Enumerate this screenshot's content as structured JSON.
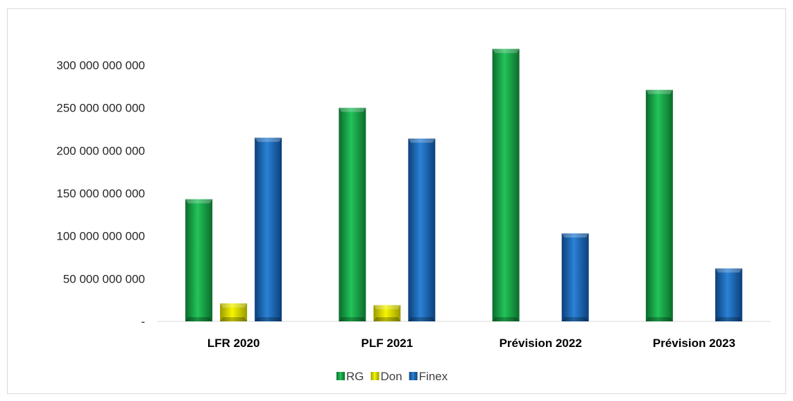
{
  "chart_data": {
    "type": "bar",
    "categories": [
      "LFR 2020",
      "PLF 2021",
      "Prévision 2022",
      "Prévision 2023"
    ],
    "series": [
      {
        "name": "RG",
        "values": [
          143000000000,
          250000000000,
          319000000000,
          271000000000
        ],
        "color": "#1aa64a"
      },
      {
        "name": "Don",
        "values": [
          21000000000,
          19000000000,
          null,
          null
        ],
        "color": "#e8e800"
      },
      {
        "name": "Finex",
        "values": [
          215000000000,
          214000000000,
          103000000000,
          62000000000
        ],
        "color": "#1d6fc2"
      }
    ],
    "ylim": [
      0,
      300000000000
    ],
    "y_ticks": [
      0,
      50000000000,
      100000000000,
      150000000000,
      200000000000,
      250000000000,
      300000000000
    ],
    "y_tick_labels": [
      "-",
      "50 000 000 000",
      "100 000 000 000",
      "150 000 000 000",
      "200 000 000 000",
      "250 000 000 000",
      "300 000 000 000"
    ],
    "title": "",
    "xlabel": "",
    "ylabel": "",
    "grid": false,
    "legend": "bottom"
  }
}
